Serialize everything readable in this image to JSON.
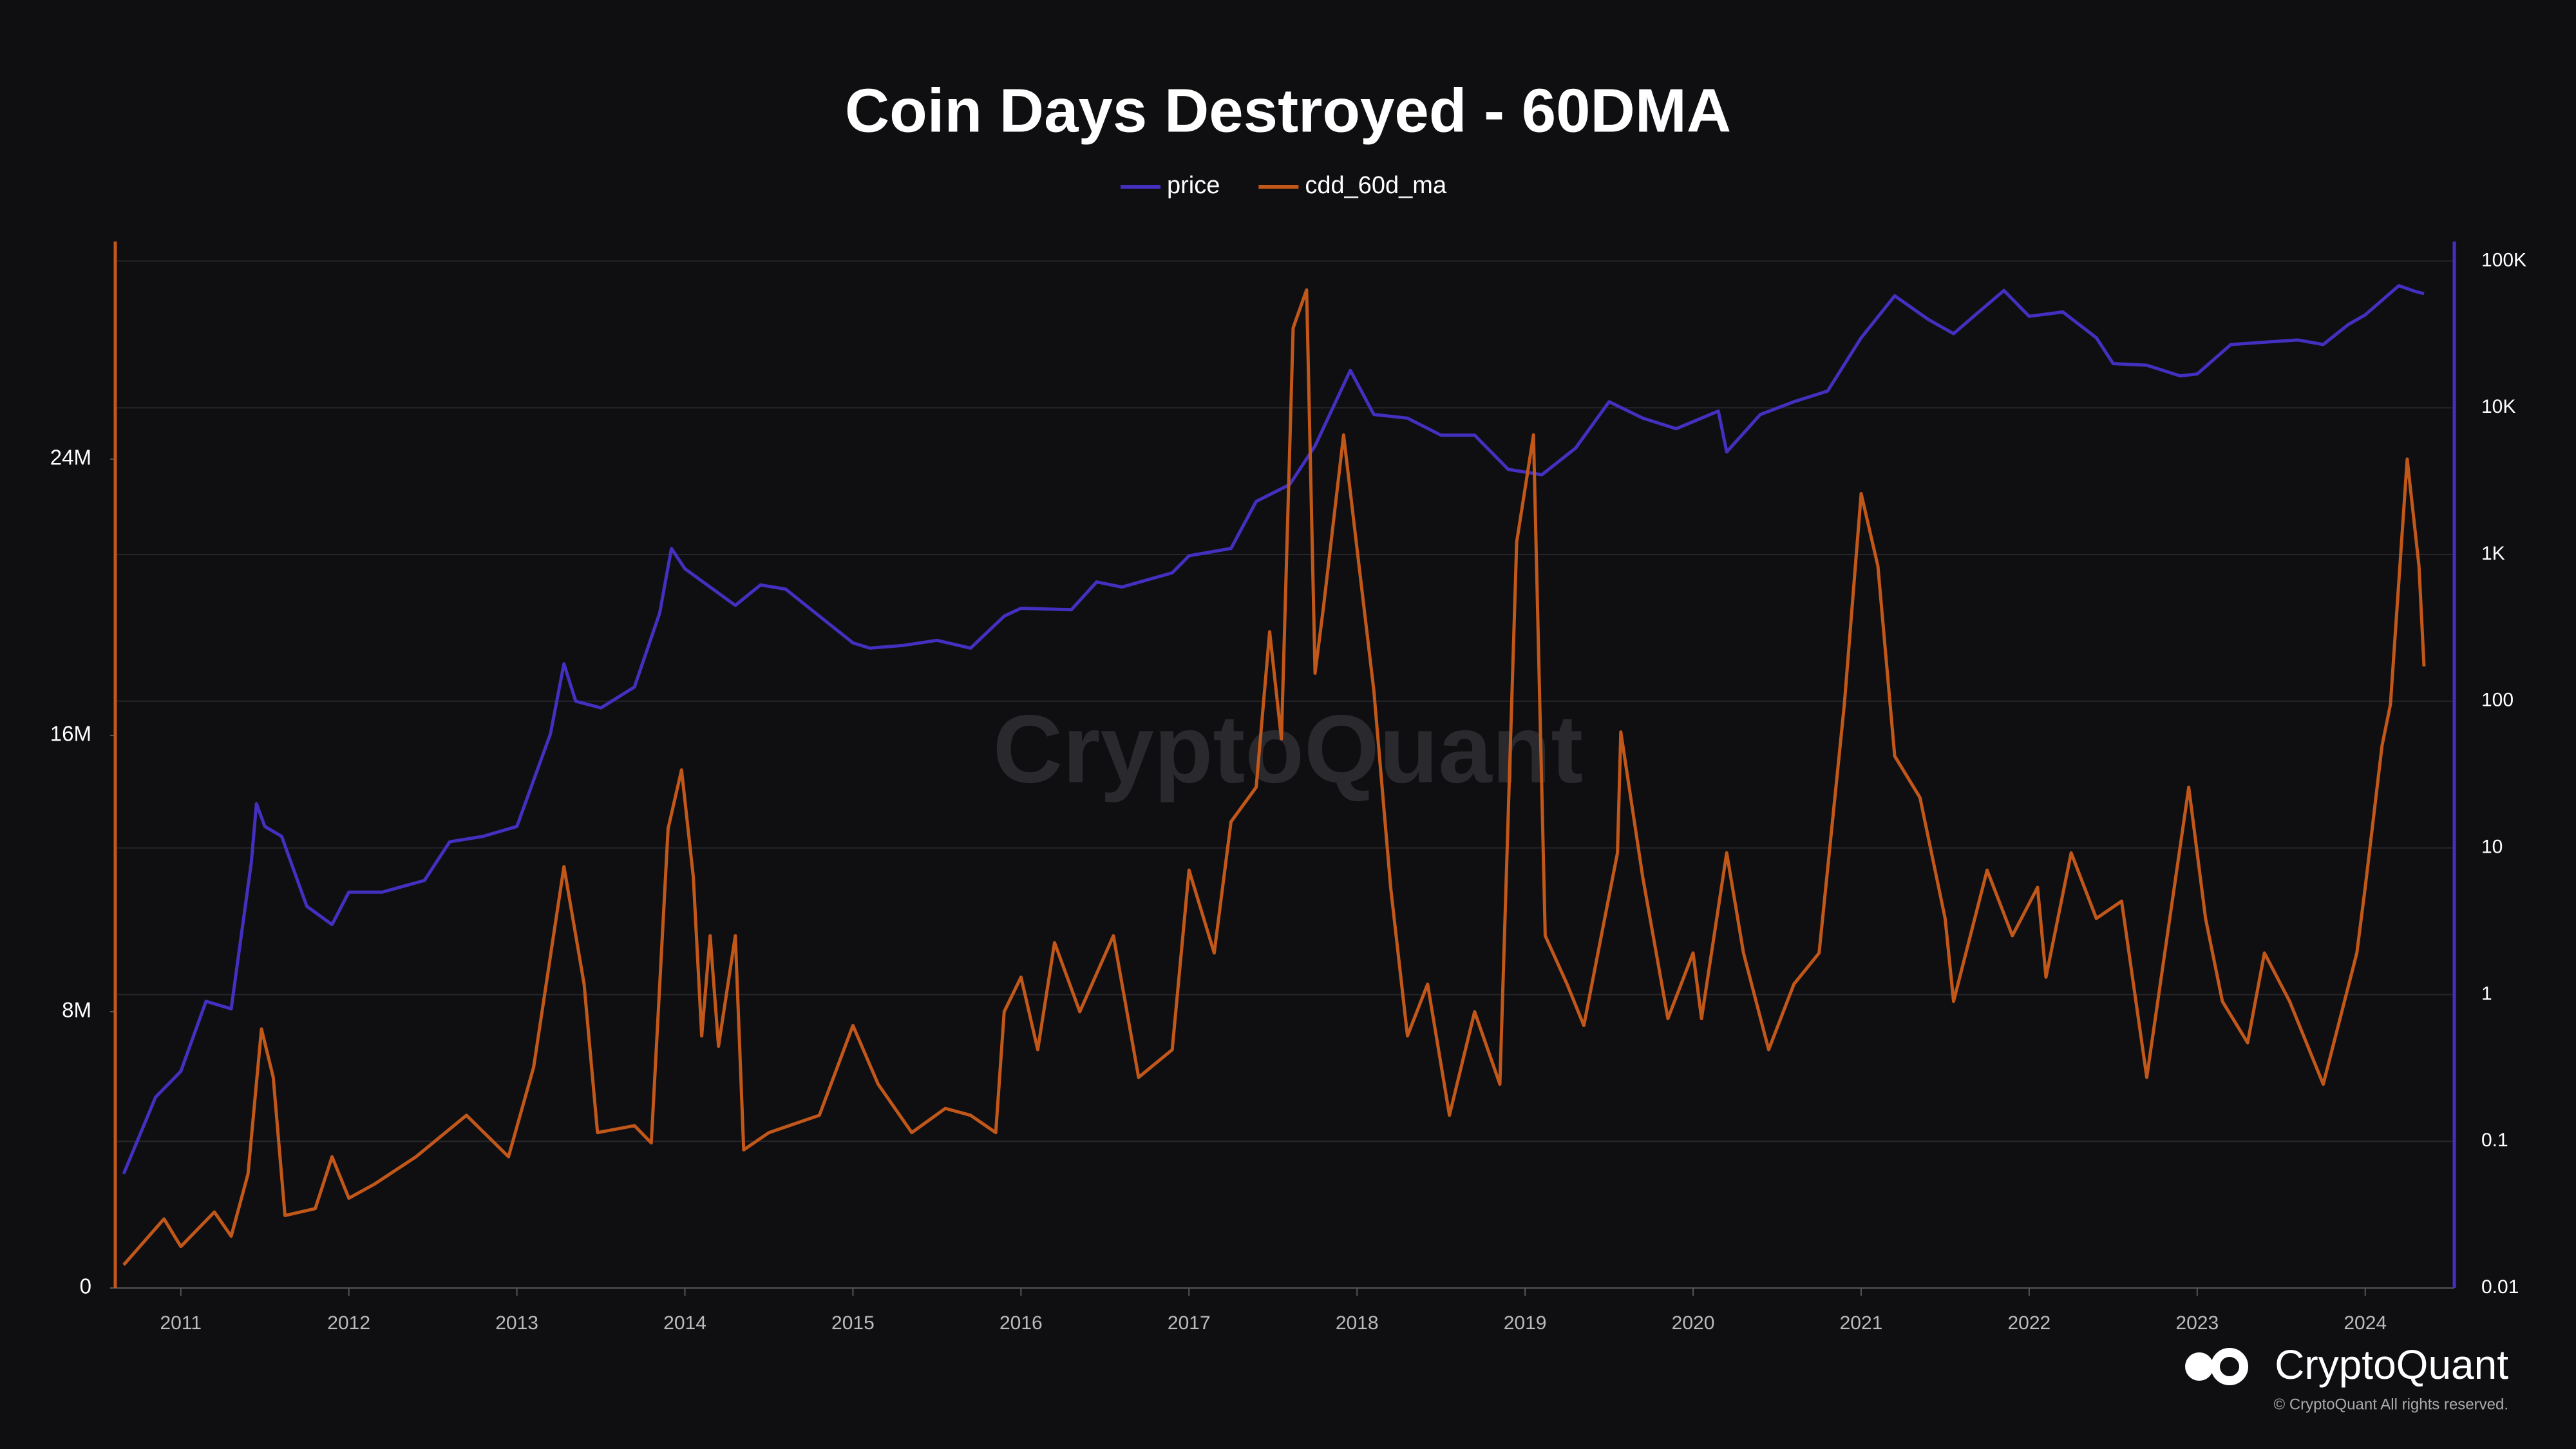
{
  "chart_data": {
    "type": "line",
    "title": "Coin Days Destroyed - 60DMA",
    "watermark": "CryptoQuant",
    "brand": "CryptoQuant",
    "copyright": "© CryptoQuant All rights reserved.",
    "xlim": [
      2010.61,
      2024.53
    ],
    "xticks": [
      2011,
      2012,
      2013,
      2014,
      2015,
      2016,
      2017,
      2018,
      2019,
      2020,
      2021,
      2022,
      2023,
      2024
    ],
    "ylim": [
      0,
      30300000
    ],
    "yticks": [
      0,
      {
        "value": 8000000,
        "label": "8M"
      },
      {
        "value": 16000000,
        "label": "16M"
      },
      {
        "value": 24000000,
        "label": "24M"
      }
    ],
    "y2lim": [
      0.01,
      136000
    ],
    "y2log": true,
    "y2ticks": [
      0.01,
      0.1,
      1,
      10,
      100,
      {
        "value": 1000,
        "label": "1K"
      },
      {
        "value": 10000,
        "label": "10K"
      },
      {
        "value": 100000,
        "label": "100K"
      }
    ],
    "grid": true,
    "legend": "top",
    "series": [
      {
        "name": "price",
        "color": "#4330c0",
        "axis": "y2",
        "x": [
          2010.66,
          2010.85,
          2011.0,
          2011.15,
          2011.3,
          2011.42,
          2011.45,
          2011.5,
          2011.6,
          2011.75,
          2011.9,
          2012.0,
          2012.2,
          2012.45,
          2012.6,
          2012.8,
          2013.0,
          2013.2,
          2013.28,
          2013.35,
          2013.5,
          2013.7,
          2013.85,
          2013.92,
          2014.0,
          2014.15,
          2014.3,
          2014.45,
          2014.6,
          2014.8,
          2015.0,
          2015.1,
          2015.3,
          2015.5,
          2015.7,
          2015.9,
          2016.0,
          2016.3,
          2016.45,
          2016.6,
          2016.9,
          2017.0,
          2017.25,
          2017.4,
          2017.6,
          2017.75,
          2017.96,
          2018.1,
          2018.3,
          2018.5,
          2018.7,
          2018.9,
          2019.1,
          2019.3,
          2019.5,
          2019.7,
          2019.9,
          2020.15,
          2020.2,
          2020.4,
          2020.6,
          2020.8,
          2021.0,
          2021.2,
          2021.4,
          2021.55,
          2021.7,
          2021.85,
          2022.0,
          2022.2,
          2022.4,
          2022.5,
          2022.7,
          2022.9,
          2023.0,
          2023.2,
          2023.4,
          2023.6,
          2023.75,
          2023.9,
          2024.0,
          2024.2,
          2024.3,
          2024.35
        ],
        "values": [
          0.06,
          0.2,
          0.3,
          0.9,
          0.8,
          8,
          20,
          14,
          12,
          4,
          3,
          5,
          5,
          6,
          11,
          12,
          14,
          60,
          180,
          100,
          90,
          125,
          400,
          1100,
          800,
          600,
          450,
          620,
          580,
          380,
          250,
          230,
          240,
          260,
          230,
          380,
          430,
          420,
          650,
          600,
          750,
          980,
          1100,
          2300,
          3000,
          5500,
          18000,
          9000,
          8500,
          6500,
          6500,
          3800,
          3500,
          5300,
          11000,
          8500,
          7200,
          9500,
          5000,
          9000,
          11000,
          13000,
          30000,
          58000,
          40000,
          32000,
          45000,
          63000,
          42000,
          45000,
          30000,
          20000,
          19500,
          16500,
          17000,
          27000,
          28000,
          29000,
          27000,
          37000,
          43000,
          68000,
          62000,
          60000
        ]
      },
      {
        "name": "cdd_60d_ma",
        "color": "#c2571a",
        "axis": "y",
        "x": [
          2010.66,
          2010.9,
          2011.0,
          2011.2,
          2011.3,
          2011.4,
          2011.48,
          2011.55,
          2011.62,
          2011.8,
          2011.9,
          2012.0,
          2012.15,
          2012.4,
          2012.7,
          2012.95,
          2013.1,
          2013.28,
          2013.4,
          2013.48,
          2013.7,
          2013.8,
          2013.9,
          2013.98,
          2014.05,
          2014.1,
          2014.15,
          2014.2,
          2014.3,
          2014.35,
          2014.5,
          2014.8,
          2015.0,
          2015.15,
          2015.35,
          2015.55,
          2015.7,
          2015.85,
          2015.9,
          2016.0,
          2016.1,
          2016.2,
          2016.35,
          2016.55,
          2016.7,
          2016.9,
          2017.0,
          2017.15,
          2017.25,
          2017.4,
          2017.48,
          2017.55,
          2017.62,
          2017.7,
          2017.75,
          2017.8,
          2017.92,
          2018.0,
          2018.1,
          2018.2,
          2018.3,
          2018.42,
          2018.55,
          2018.7,
          2018.85,
          2018.95,
          2019.05,
          2019.12,
          2019.25,
          2019.35,
          2019.55,
          2019.57,
          2019.7,
          2019.85,
          2020.0,
          2020.05,
          2020.2,
          2020.3,
          2020.45,
          2020.6,
          2020.75,
          2020.9,
          2021.0,
          2021.1,
          2021.2,
          2021.35,
          2021.5,
          2021.55,
          2021.75,
          2021.9,
          2022.05,
          2022.1,
          2022.25,
          2022.4,
          2022.55,
          2022.7,
          2022.95,
          2023.05,
          2023.15,
          2023.3,
          2023.4,
          2023.55,
          2023.75,
          2023.95,
          2024.0,
          2024.1,
          2024.15,
          2024.25,
          2024.32,
          2024.35
        ],
        "values": [
          670000,
          2000000,
          1200000,
          2200000,
          1500000,
          3300000,
          7500000,
          6100000,
          2100000,
          2300000,
          3800000,
          2600000,
          3000000,
          3800000,
          5000000,
          3800000,
          6400000,
          12200000,
          8800000,
          4500000,
          4700000,
          4200000,
          13300000,
          15000000,
          11900000,
          7300000,
          10200000,
          7000000,
          10200000,
          4000000,
          4500000,
          5000000,
          7600000,
          5900000,
          4500000,
          5200000,
          5000000,
          4500000,
          8000000,
          9000000,
          6900000,
          10000000,
          8000000,
          10200000,
          6100000,
          6900000,
          12100000,
          9700000,
          13500000,
          14500000,
          19000000,
          15900000,
          27800000,
          28900000,
          17800000,
          19700000,
          24700000,
          21400000,
          17300000,
          11600000,
          7300000,
          8800000,
          5000000,
          8000000,
          5900000,
          21600000,
          24700000,
          10200000,
          8800000,
          7600000,
          12600000,
          16100000,
          11900000,
          7800000,
          9700000,
          7800000,
          12600000,
          9700000,
          6900000,
          8800000,
          9700000,
          16900000,
          23000000,
          20900000,
          15400000,
          14200000,
          10700000,
          8300000,
          12100000,
          10200000,
          11600000,
          9000000,
          12600000,
          10700000,
          11200000,
          6100000,
          14500000,
          10700000,
          8300000,
          7100000,
          9700000,
          8300000,
          5900000,
          9700000,
          11600000,
          15700000,
          16900000,
          24000000,
          20900000,
          18000000
        ]
      }
    ]
  }
}
